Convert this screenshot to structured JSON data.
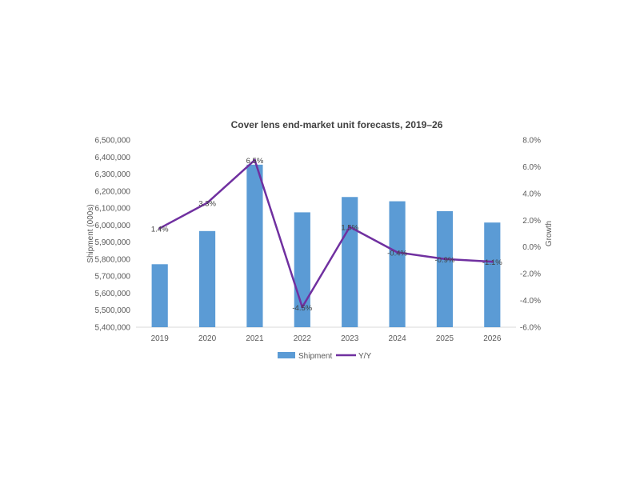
{
  "chart_data": {
    "type": "bar",
    "title": "Cover lens end-market unit forecasts, 2019–26",
    "categories": [
      "2019",
      "2020",
      "2021",
      "2022",
      "2023",
      "2024",
      "2025",
      "2026"
    ],
    "series": [
      {
        "name": "Shipment",
        "type": "bar",
        "axis": "left",
        "color": "#5B9BD5",
        "values": [
          5770000,
          5965000,
          6355000,
          6075000,
          6165000,
          6140000,
          6082000,
          6015000
        ]
      },
      {
        "name": "Y/Y",
        "type": "line",
        "axis": "right",
        "color": "#7030A0",
        "values": [
          1.4,
          3.3,
          6.5,
          -4.5,
          1.5,
          -0.4,
          -0.9,
          -1.1
        ],
        "data_labels": [
          "1.4%",
          "3.3%",
          "6.5%",
          "-4.5%",
          "1.5%",
          "-0.4%",
          "-0.9%",
          "-1.1%"
        ]
      }
    ],
    "ylabel": "Shipment (000s)",
    "y2label": "Growth",
    "ylim": [
      5400000,
      6500000
    ],
    "y2lim": [
      -6,
      8
    ],
    "y_ticks": [
      "6,500,000",
      "6,400,000",
      "6,300,000",
      "6,200,000",
      "6,100,000",
      "6,000,000",
      "5,900,000",
      "5,800,000",
      "5,700,000",
      "5,600,000",
      "5,500,000",
      "5,400,000"
    ],
    "y2_ticks": [
      "8.0%",
      "6.0%",
      "4.0%",
      "2.0%",
      "0.0%",
      "-2.0%",
      "-4.0%",
      "-6.0%"
    ],
    "grid": false,
    "legend_position": "bottom"
  }
}
